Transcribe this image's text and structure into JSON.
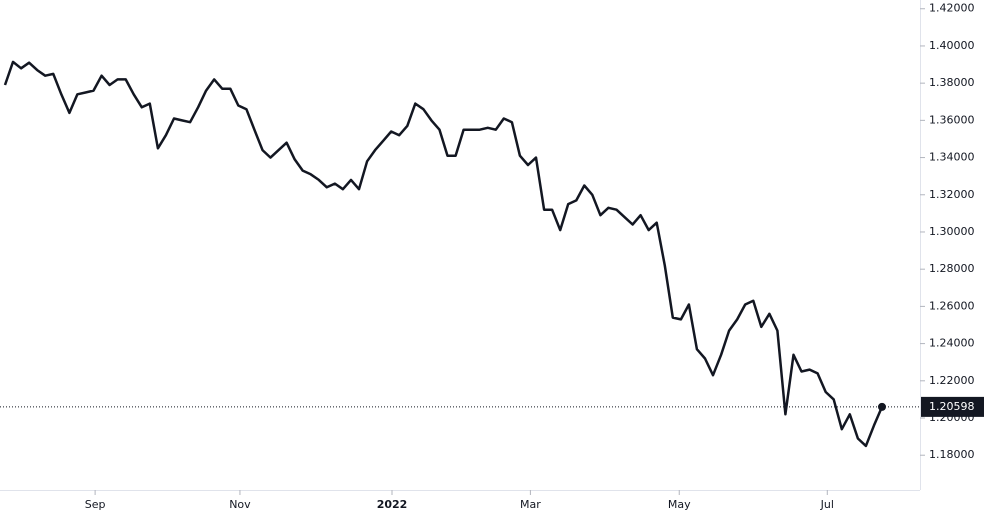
{
  "chart_data": {
    "type": "line",
    "series": [
      {
        "name": null,
        "color": "#131722",
        "values": [
          1.379,
          1.3914,
          1.388,
          1.391,
          1.387,
          1.384,
          1.385,
          1.374,
          1.364,
          1.374,
          1.375,
          1.376,
          1.384,
          1.379,
          1.382,
          1.382,
          1.374,
          1.367,
          1.369,
          1.345,
          1.352,
          1.361,
          1.36,
          1.359,
          1.367,
          1.376,
          1.382,
          1.377,
          1.377,
          1.368,
          1.366,
          1.355,
          1.344,
          1.34,
          1.344,
          1.348,
          1.339,
          1.333,
          1.331,
          1.328,
          1.324,
          1.326,
          1.323,
          1.328,
          1.323,
          1.338,
          1.344,
          1.349,
          1.354,
          1.352,
          1.357,
          1.369,
          1.366,
          1.36,
          1.355,
          1.341,
          1.341,
          1.355,
          1.355,
          1.355,
          1.356,
          1.355,
          1.361,
          1.359,
          1.341,
          1.336,
          1.34,
          1.312,
          1.312,
          1.301,
          1.315,
          1.317,
          1.325,
          1.32,
          1.309,
          1.313,
          1.312,
          1.308,
          1.304,
          1.309,
          1.301,
          1.305,
          1.282,
          1.254,
          1.253,
          1.261,
          1.237,
          1.232,
          1.223,
          1.234,
          1.247,
          1.253,
          1.261,
          1.263,
          1.249,
          1.256,
          1.247,
          1.202,
          1.234,
          1.225,
          1.226,
          1.224,
          1.214,
          1.21,
          1.194,
          1.202,
          1.189,
          1.185,
          1.196,
          1.20598
        ]
      }
    ],
    "last_value_label": "1.20598",
    "ylim": [
      1.1613,
      1.4247
    ],
    "yticks": [
      {
        "value": 1.18,
        "label": "1.18000"
      },
      {
        "value": 1.2,
        "label": "1.20000"
      },
      {
        "value": 1.22,
        "label": "1.22000"
      },
      {
        "value": 1.24,
        "label": "1.24000"
      },
      {
        "value": 1.26,
        "label": "1.26000"
      },
      {
        "value": 1.28,
        "label": "1.28000"
      },
      {
        "value": 1.3,
        "label": "1.30000"
      },
      {
        "value": 1.32,
        "label": "1.32000"
      },
      {
        "value": 1.34,
        "label": "1.34000"
      },
      {
        "value": 1.36,
        "label": "1.36000"
      },
      {
        "value": 1.38,
        "label": "1.38000"
      },
      {
        "value": 1.4,
        "label": "1.40000"
      },
      {
        "value": 1.42,
        "label": "1.42000"
      }
    ],
    "xlim": [
      0,
      109
    ],
    "xticks": [
      {
        "value": 11.2,
        "label": "Sep"
      },
      {
        "value": 29.2,
        "label": "Nov"
      },
      {
        "value": 48.1,
        "label": "2022"
      },
      {
        "value": 65.3,
        "label": "Mar"
      },
      {
        "value": 83.8,
        "label": "May"
      },
      {
        "value": 102.2,
        "label": "Jul"
      }
    ]
  }
}
